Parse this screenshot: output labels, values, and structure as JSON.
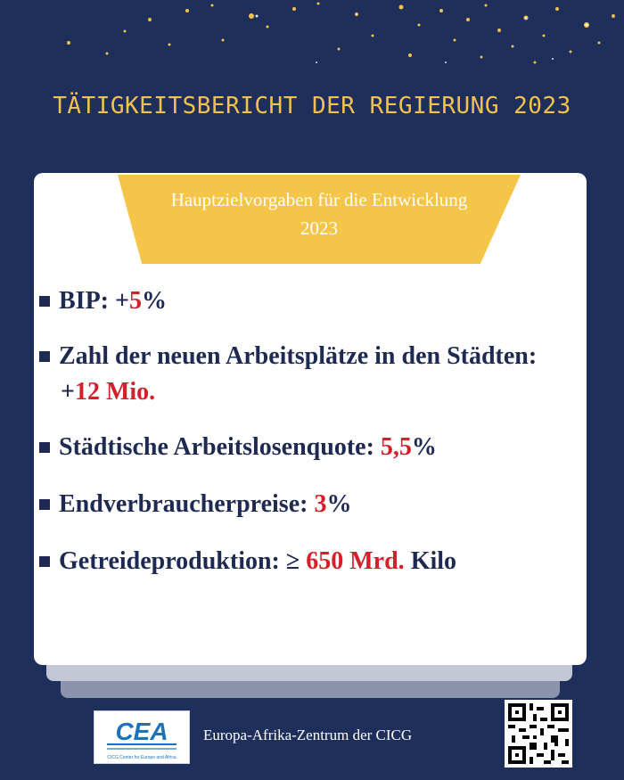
{
  "title": "TÄTIGKEITSBERICHT DER REGIERUNG 2023",
  "banner": {
    "line1": "Hauptzielvorgaben für die Entwicklung",
    "line2": "2023"
  },
  "items": [
    {
      "label": "BIP: +",
      "value": "5",
      "suffix": "%"
    },
    {
      "label": "Zahl der neuen Arbeitsplätze in den Städten:",
      "prefix": "+",
      "value": "12 Mio.",
      "suffix": ""
    },
    {
      "label": "Städtische Arbeitslosenquote: ",
      "value": "5,5",
      "suffix": "%"
    },
    {
      "label": "Endverbraucherpreise: ",
      "value": "3",
      "suffix": "%"
    },
    {
      "label": "Getreideproduktion: ≥ ",
      "value": "650 Mrd.",
      "suffix": " Kilo"
    }
  ],
  "footer": {
    "logo_text": "CEA",
    "logo_sub": "CICG Center for Europe and Africa",
    "org": "Europa-Afrika-Zentrum der CICG"
  },
  "colors": {
    "background": "#1f2f5c",
    "accent_gold": "#f5c54a",
    "highlight_red": "#d4202a",
    "text_navy": "#1f2a52"
  }
}
